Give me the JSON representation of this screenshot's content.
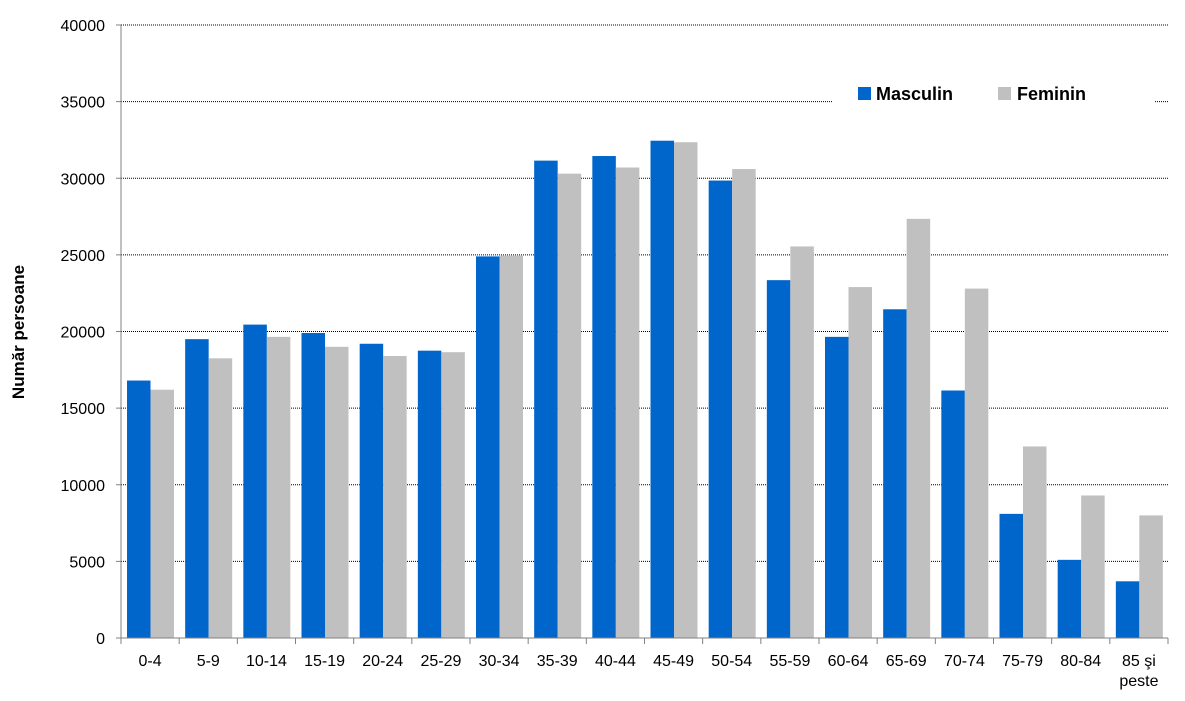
{
  "chart_data": {
    "type": "bar",
    "title": "",
    "xlabel": "",
    "ylabel": "Număr persoane",
    "ylim": [
      0,
      40000
    ],
    "yticks": [
      0,
      5000,
      10000,
      15000,
      20000,
      25000,
      30000,
      35000,
      40000
    ],
    "grid": true,
    "legend_position": "top-right",
    "categories": [
      "0-4",
      "5-9",
      "10-14",
      "15-19",
      "20-24",
      "25-29",
      "30-34",
      "35-39",
      "40-44",
      "45-49",
      "50-54",
      "55-59",
      "60-64",
      "65-69",
      "70-74",
      "75-79",
      "80-84",
      "85 şi peste"
    ],
    "series": [
      {
        "name": "Masculin",
        "color": "#0066CC",
        "values": [
          16800,
          19500,
          20450,
          19900,
          19200,
          18750,
          24900,
          31150,
          31450,
          32450,
          29850,
          23350,
          19650,
          21450,
          16150,
          8100,
          5100,
          3700
        ]
      },
      {
        "name": "Feminin",
        "color": "#C0C0C0",
        "values": [
          16200,
          18250,
          19650,
          19000,
          18400,
          18650,
          24950,
          30300,
          30700,
          32350,
          30600,
          25550,
          22900,
          27350,
          22800,
          12500,
          9300,
          8000
        ]
      }
    ]
  }
}
